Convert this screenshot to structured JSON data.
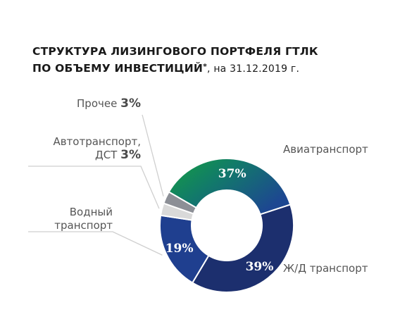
{
  "title": {
    "line1": "СТРУКТУРА ЛИЗИНГОВОГО ПОРТФЕЛЯ ГТЛК",
    "line2_bold": "ПО ОБЪЕМУ ИНВЕСТИЦИЙ",
    "line2_asterisk": "*",
    "line2_note": ", на 31.12.2019 г."
  },
  "labels": {
    "other": {
      "name": "Прочее",
      "pct": "3%"
    },
    "auto": {
      "name_line1": "Автотранспорт,",
      "name_line2": "ДСТ",
      "pct": "3%"
    },
    "water": {
      "name_line1": "Водный",
      "name_line2": "транспорт"
    },
    "aviation": {
      "name": "Авиатранспорт"
    },
    "rail": {
      "name": "Ж/Д транспорт"
    }
  },
  "chart_data": {
    "type": "pie",
    "donut": true,
    "slices": [
      {
        "label": "Авиатранспорт",
        "value": 37,
        "display": "37%",
        "color_start": "#1a9a3e",
        "color_end": "#1a4a8a"
      },
      {
        "label": "Ж/Д транспорт",
        "value": 39,
        "display": "39%",
        "color_start": "#1c2f6e",
        "color_end": "#1c2f6e"
      },
      {
        "label": "Водный транспорт",
        "value": 19,
        "display": "19%",
        "color_start": "#1f3f8f",
        "color_end": "#1f3f8f"
      },
      {
        "label": "Автотранспорт, ДСТ",
        "value": 3,
        "display": "3%",
        "color_start": "#d9d9d9",
        "color_end": "#d9d9d9"
      },
      {
        "label": "Прочее",
        "value": 3,
        "display": "3%",
        "color_start": "#8c8f96",
        "color_end": "#8c8f96"
      }
    ],
    "start_angle_deg": 300,
    "direction": "clockwise"
  }
}
